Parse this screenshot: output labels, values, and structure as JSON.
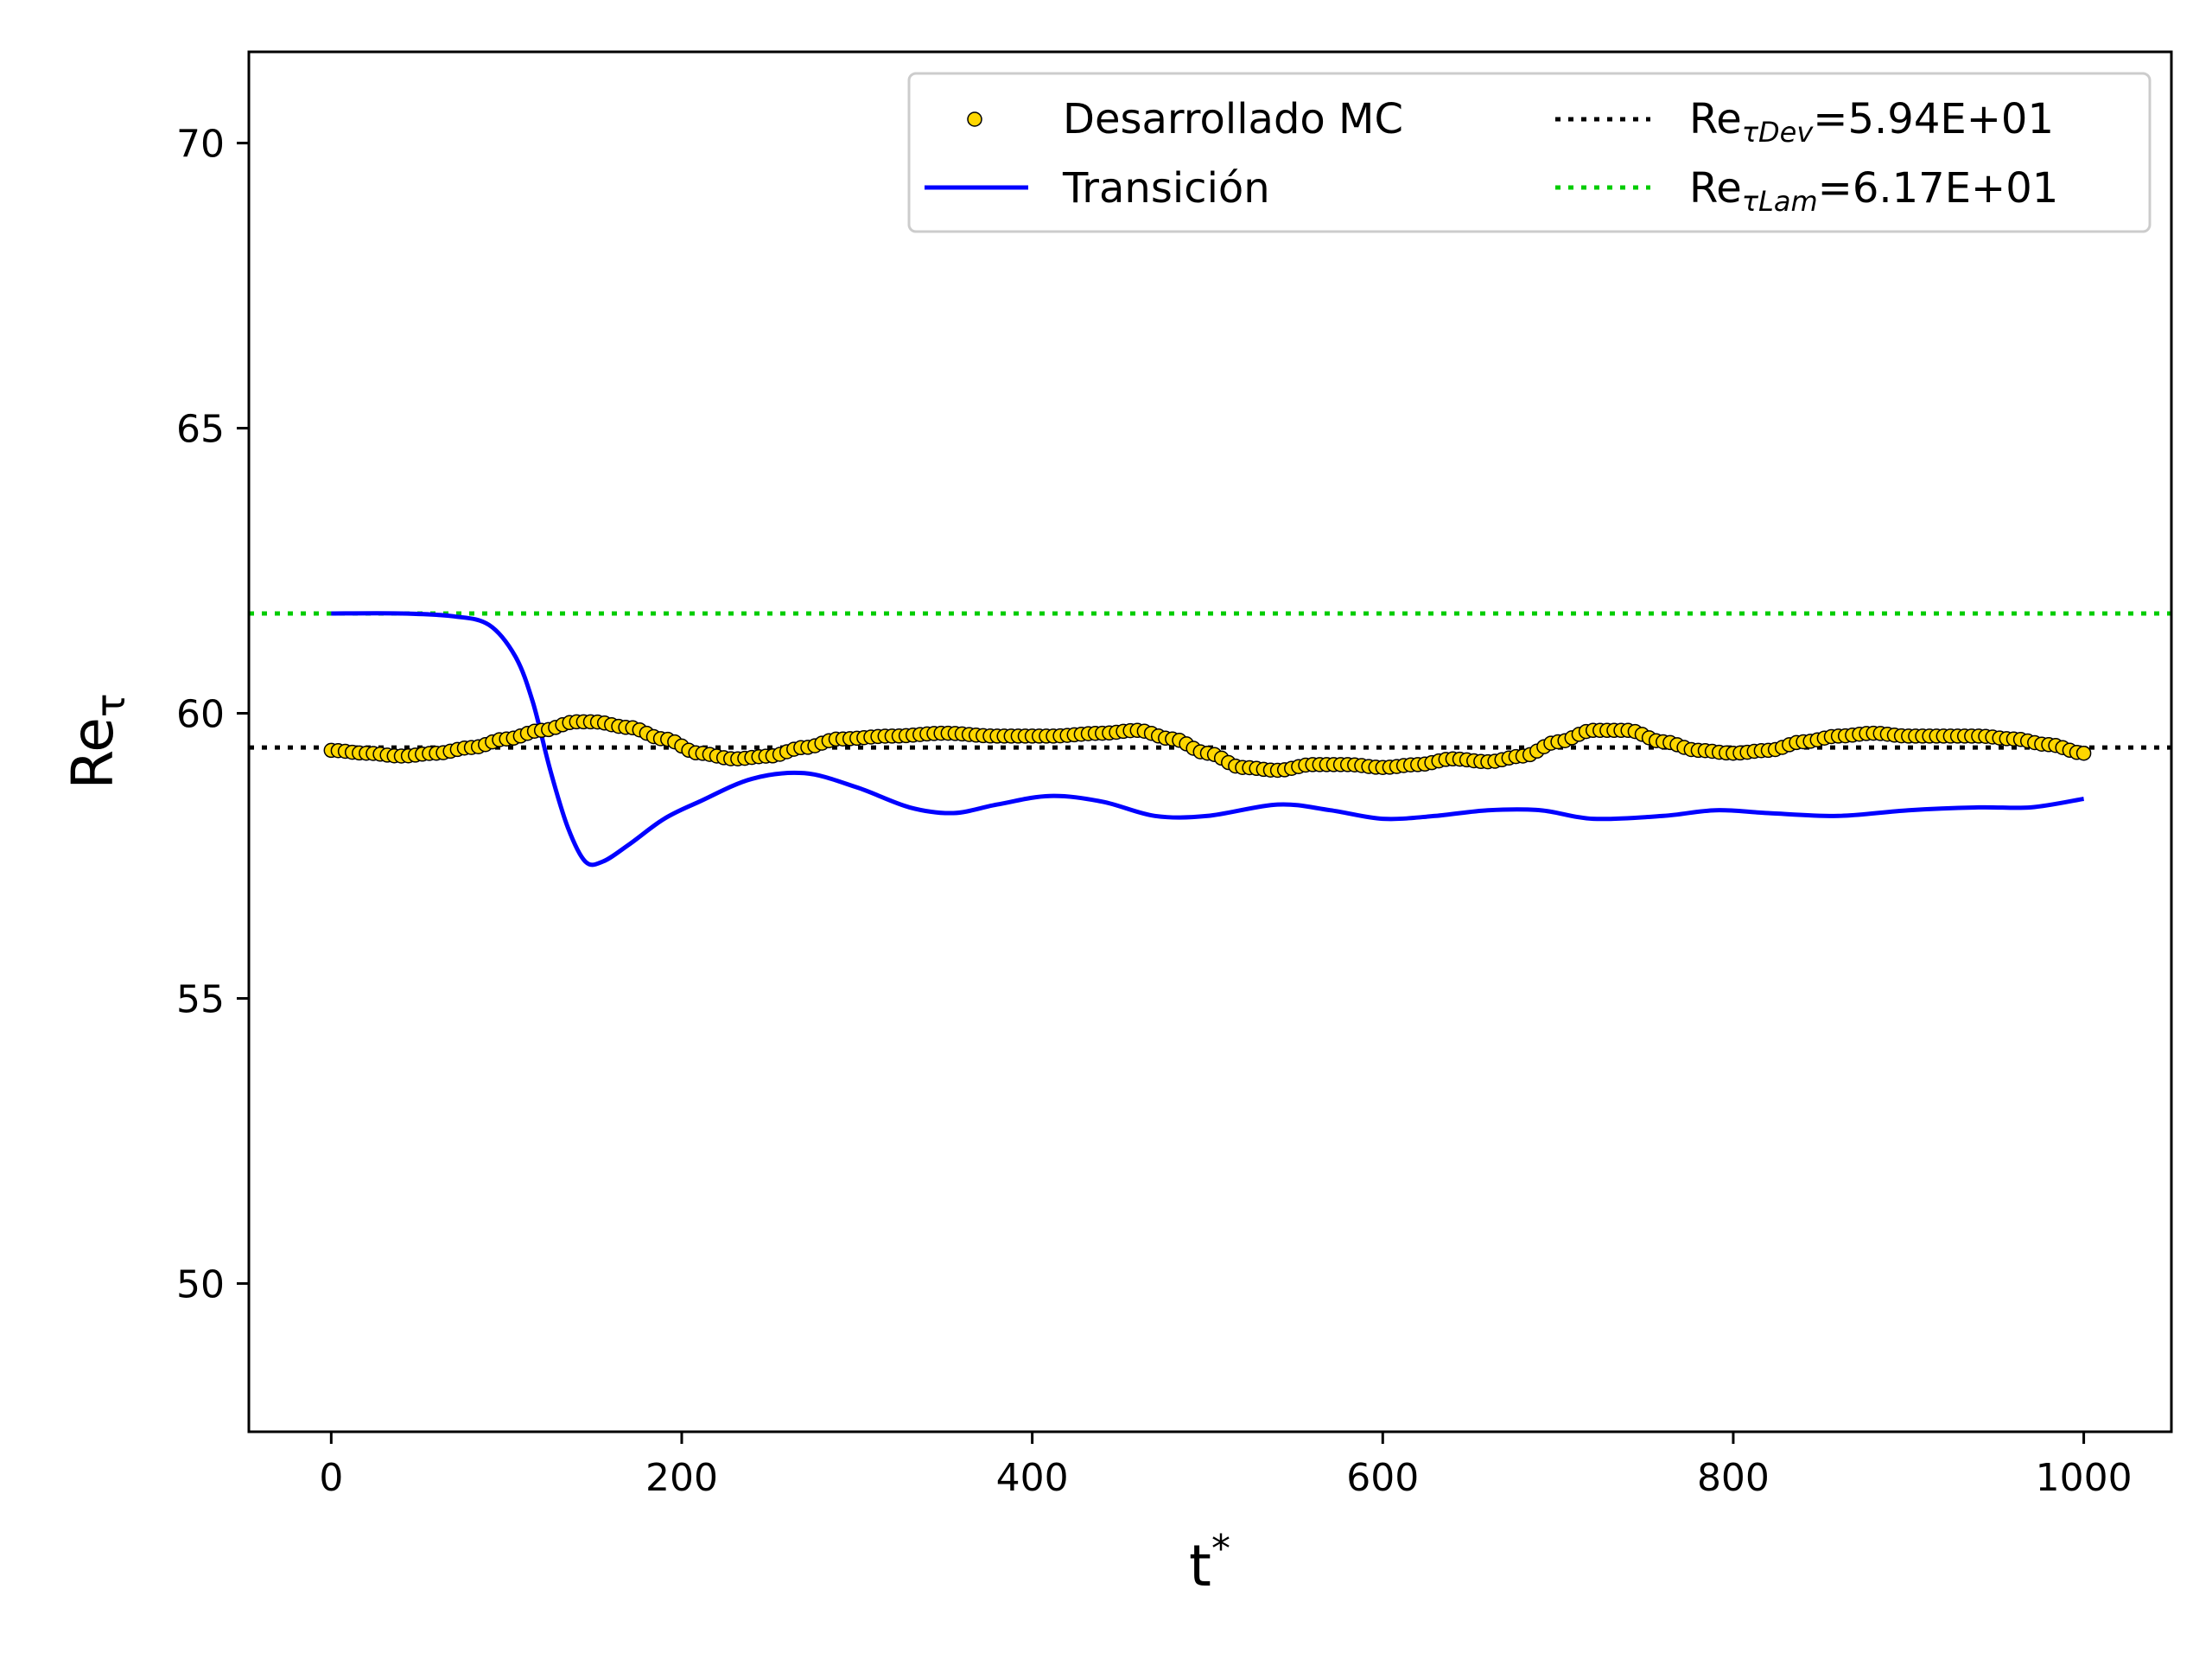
{
  "chart_data": {
    "type": "line",
    "xlabel": "t",
    "xlabel_sup": "*",
    "ylabel": "Re",
    "ylabel_sub": "τ",
    "xlim": [
      -47,
      1050
    ],
    "ylim": [
      47.4,
      71.6
    ],
    "x_ticks": [
      0,
      200,
      400,
      600,
      800,
      1000
    ],
    "y_ticks": [
      50,
      55,
      60,
      65,
      70
    ],
    "grid": false,
    "legend_position": "top-right",
    "series": [
      {
        "name": "Desarrollado MC",
        "kind": "scatter",
        "color": "#FFD700",
        "edge_color": "#000000",
        "points": [
          [
            0,
            59.35
          ],
          [
            20,
            59.3
          ],
          [
            40,
            59.25
          ],
          [
            60,
            59.3
          ],
          [
            80,
            59.4
          ],
          [
            100,
            59.55
          ],
          [
            120,
            59.7
          ],
          [
            140,
            59.85
          ],
          [
            150,
            59.85
          ],
          [
            170,
            59.75
          ],
          [
            190,
            59.55
          ],
          [
            210,
            59.3
          ],
          [
            230,
            59.2
          ],
          [
            250,
            59.25
          ],
          [
            270,
            59.4
          ],
          [
            290,
            59.55
          ],
          [
            320,
            59.6
          ],
          [
            350,
            59.65
          ],
          [
            380,
            59.6
          ],
          [
            410,
            59.6
          ],
          [
            440,
            59.65
          ],
          [
            460,
            59.7
          ],
          [
            480,
            59.55
          ],
          [
            500,
            59.3
          ],
          [
            520,
            59.05
          ],
          [
            540,
            59.0
          ],
          [
            560,
            59.1
          ],
          [
            580,
            59.1
          ],
          [
            600,
            59.05
          ],
          [
            620,
            59.1
          ],
          [
            640,
            59.2
          ],
          [
            660,
            59.15
          ],
          [
            680,
            59.25
          ],
          [
            700,
            59.5
          ],
          [
            720,
            59.7
          ],
          [
            740,
            59.7
          ],
          [
            760,
            59.5
          ],
          [
            780,
            59.35
          ],
          [
            800,
            59.3
          ],
          [
            820,
            59.35
          ],
          [
            840,
            59.5
          ],
          [
            860,
            59.6
          ],
          [
            880,
            59.65
          ],
          [
            900,
            59.6
          ],
          [
            920,
            59.6
          ],
          [
            940,
            59.6
          ],
          [
            960,
            59.55
          ],
          [
            980,
            59.45
          ],
          [
            1000,
            59.3
          ]
        ]
      },
      {
        "name": "Transición",
        "kind": "line",
        "color": "#0000FF",
        "points": [
          [
            0,
            61.75
          ],
          [
            40,
            61.75
          ],
          [
            70,
            61.7
          ],
          [
            90,
            61.55
          ],
          [
            105,
            61.0
          ],
          [
            115,
            60.2
          ],
          [
            125,
            59.0
          ],
          [
            135,
            58.0
          ],
          [
            145,
            57.4
          ],
          [
            155,
            57.4
          ],
          [
            170,
            57.7
          ],
          [
            190,
            58.15
          ],
          [
            210,
            58.45
          ],
          [
            240,
            58.85
          ],
          [
            270,
            58.95
          ],
          [
            300,
            58.7
          ],
          [
            330,
            58.35
          ],
          [
            355,
            58.25
          ],
          [
            380,
            58.4
          ],
          [
            410,
            58.55
          ],
          [
            440,
            58.45
          ],
          [
            470,
            58.2
          ],
          [
            500,
            58.2
          ],
          [
            540,
            58.4
          ],
          [
            570,
            58.3
          ],
          [
            600,
            58.15
          ],
          [
            630,
            58.2
          ],
          [
            660,
            58.3
          ],
          [
            690,
            58.3
          ],
          [
            720,
            58.15
          ],
          [
            760,
            58.2
          ],
          [
            790,
            58.3
          ],
          [
            820,
            58.25
          ],
          [
            860,
            58.2
          ],
          [
            900,
            58.3
          ],
          [
            940,
            58.35
          ],
          [
            970,
            58.35
          ],
          [
            1000,
            58.5
          ]
        ]
      },
      {
        "name": "Re",
        "name_sub": "τDev",
        "name_value": "=5.94E+01",
        "kind": "hline",
        "color": "#000000",
        "y": 59.4
      },
      {
        "name": "Re",
        "name_sub": "τLam",
        "name_value": "=6.17E+01",
        "kind": "hline",
        "color": "#00CC00",
        "y": 61.75
      }
    ]
  }
}
